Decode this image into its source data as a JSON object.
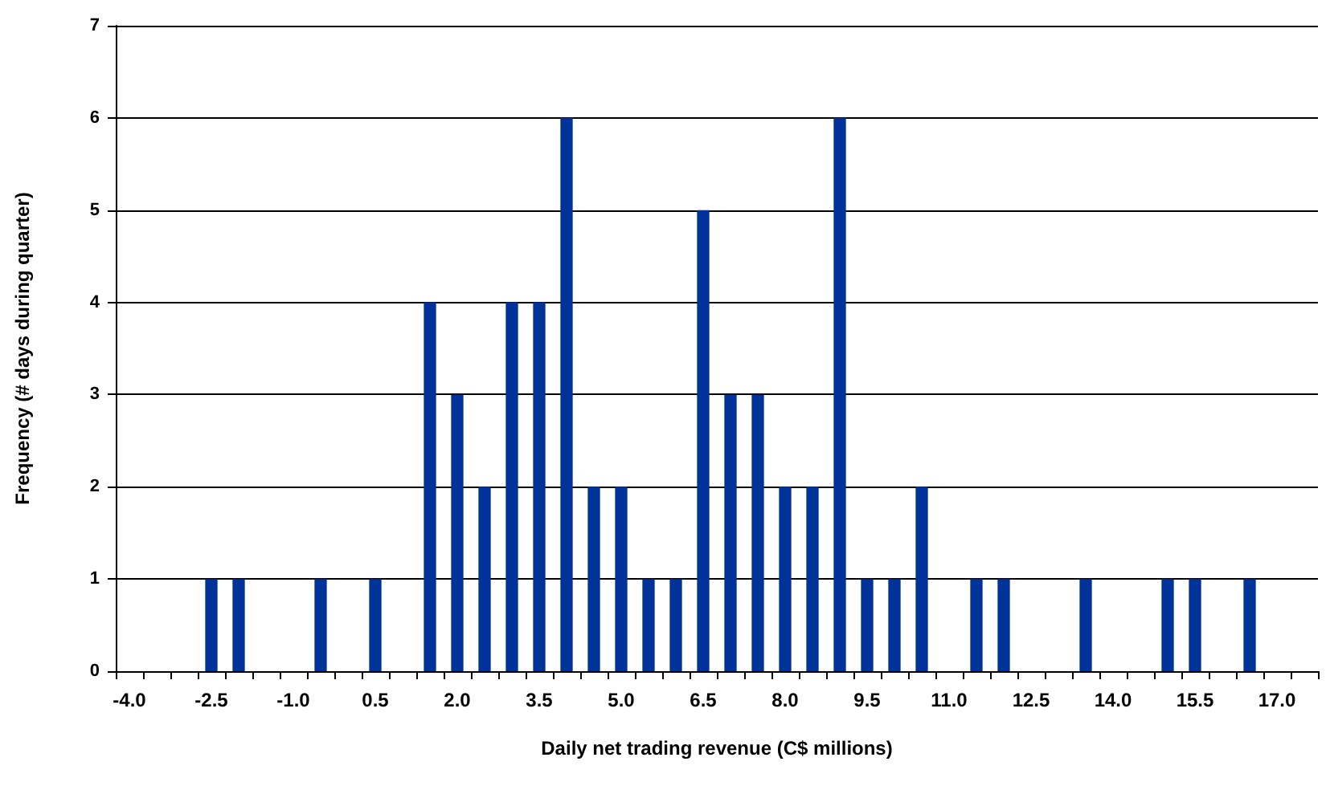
{
  "chart_data": {
    "type": "bar",
    "xlabel": "Daily net trading revenue (C$ millions)",
    "ylabel": "Frequency (# days during quarter)",
    "categories": [
      "-4.0",
      null,
      null,
      "-2.5",
      null,
      null,
      "-1.0",
      null,
      null,
      "0.5",
      null,
      null,
      "2.0",
      null,
      null,
      "3.5",
      null,
      null,
      "5.0",
      null,
      null,
      "6.5",
      null,
      null,
      "8.0",
      null,
      null,
      "9.5",
      null,
      null,
      "11.0",
      null,
      null,
      "12.5",
      null,
      null,
      "14.0",
      null,
      null,
      "15.5",
      null,
      null,
      "17.0",
      null
    ],
    "values": [
      0,
      0,
      0,
      1,
      1,
      0,
      0,
      1,
      0,
      1,
      0,
      4,
      3,
      2,
      4,
      4,
      6,
      2,
      2,
      1,
      1,
      5,
      3,
      3,
      2,
      2,
      6,
      1,
      1,
      2,
      0,
      1,
      1,
      0,
      0,
      1,
      0,
      0,
      1,
      1,
      0,
      1,
      0,
      0
    ],
    "color": "#003399",
    "ylim": [
      0,
      7
    ],
    "yticks": [
      0,
      1,
      2,
      3,
      4,
      5,
      6,
      7
    ],
    "grid": "y"
  }
}
